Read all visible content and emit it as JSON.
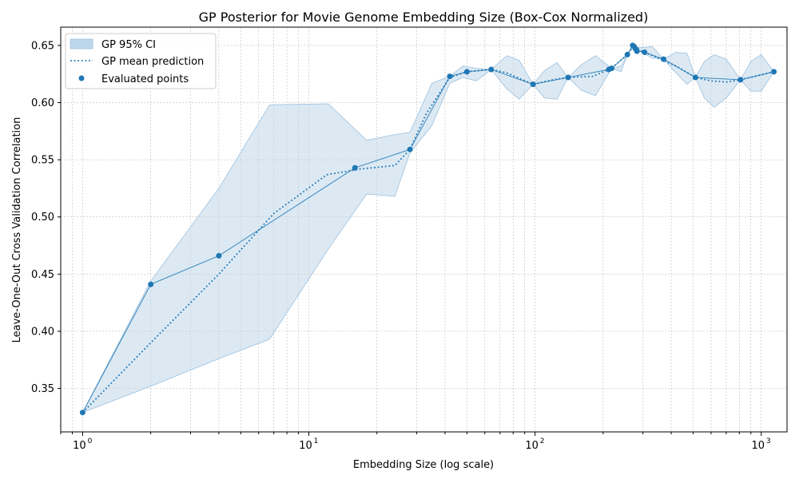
{
  "chart_data": {
    "type": "line",
    "title": "GP Posterior for Movie Genome Embedding Size (Box-Cox Normalized)",
    "xlabel": "Embedding Size (log scale)",
    "ylabel": "Leave-One-Out Cross Validation Correlation",
    "xscale": "log",
    "xlim": [
      0.8,
      1300
    ],
    "ylim": [
      0.312,
      0.666
    ],
    "grid": true,
    "legend_position": "top-left",
    "x_ticks": [
      {
        "value": 1,
        "base": "10",
        "exp": "0"
      },
      {
        "value": 10,
        "base": "10",
        "exp": "1"
      },
      {
        "value": 100,
        "base": "10",
        "exp": "2"
      },
      {
        "value": 1000,
        "base": "10",
        "exp": "3"
      }
    ],
    "y_ticks": [
      "0.35",
      "0.40",
      "0.45",
      "0.50",
      "0.55",
      "0.60",
      "0.65"
    ],
    "series": [
      {
        "name": "Evaluated points",
        "kind": "scatter",
        "x": [
          1,
          2,
          4,
          16,
          28,
          42,
          50,
          64,
          98,
          140,
          212,
          218,
          256,
          270,
          274,
          278,
          282,
          305,
          370,
          512,
          810,
          1138
        ],
        "y": [
          0.329,
          0.441,
          0.466,
          0.543,
          0.559,
          0.623,
          0.627,
          0.629,
          0.616,
          0.622,
          0.629,
          0.63,
          0.642,
          0.65,
          0.649,
          0.647,
          0.645,
          0.644,
          0.638,
          0.622,
          0.62,
          0.627
        ]
      },
      {
        "name": "GP mean prediction",
        "kind": "dotted-line",
        "x": [
          1,
          2,
          4,
          7,
          12,
          17,
          24,
          28,
          33,
          42,
          50,
          64,
          75,
          98,
          120,
          140,
          180,
          218,
          256,
          274,
          290,
          340,
          420,
          512,
          600,
          700,
          810,
          1138
        ],
        "y": [
          0.329,
          0.39,
          0.45,
          0.503,
          0.537,
          0.542,
          0.545,
          0.559,
          0.59,
          0.622,
          0.627,
          0.629,
          0.626,
          0.616,
          0.62,
          0.622,
          0.623,
          0.63,
          0.642,
          0.65,
          0.646,
          0.64,
          0.632,
          0.622,
          0.619,
          0.618,
          0.62,
          0.627
        ]
      },
      {
        "name": "GP 95% CI",
        "kind": "band",
        "x": [
          1,
          2,
          4,
          6.7,
          12.2,
          18,
          24,
          28,
          35,
          42,
          48,
          55,
          64,
          75,
          85,
          98,
          110,
          125,
          140,
          160,
          185,
          218,
          240,
          256,
          274,
          290,
          330,
          370,
          420,
          470,
          512,
          560,
          620,
          700,
          810,
          900,
          1000,
          1138
        ],
        "lower": [
          0.329,
          0.352,
          0.376,
          0.393,
          0.472,
          0.52,
          0.518,
          0.556,
          0.58,
          0.617,
          0.622,
          0.619,
          0.629,
          0.612,
          0.603,
          0.616,
          0.604,
          0.603,
          0.622,
          0.611,
          0.606,
          0.63,
          0.627,
          0.642,
          0.65,
          0.645,
          0.639,
          0.638,
          0.626,
          0.616,
          0.622,
          0.604,
          0.596,
          0.604,
          0.62,
          0.61,
          0.61,
          0.627
        ],
        "upper": [
          0.329,
          0.444,
          0.525,
          0.598,
          0.599,
          0.567,
          0.572,
          0.574,
          0.617,
          0.623,
          0.632,
          0.63,
          0.629,
          0.641,
          0.637,
          0.616,
          0.628,
          0.635,
          0.622,
          0.633,
          0.641,
          0.63,
          0.632,
          0.642,
          0.65,
          0.648,
          0.649,
          0.638,
          0.644,
          0.643,
          0.622,
          0.636,
          0.642,
          0.638,
          0.62,
          0.636,
          0.642,
          0.627
        ]
      }
    ],
    "legend": [
      {
        "label": "GP 95% CI",
        "kind": "band"
      },
      {
        "label": "GP mean prediction",
        "kind": "dotted-line"
      },
      {
        "label": "Evaluated points",
        "kind": "scatter"
      }
    ],
    "colors": {
      "primary": "#1f77b4",
      "band": "#bfd7ea",
      "grid": "#b0b0b0"
    }
  }
}
